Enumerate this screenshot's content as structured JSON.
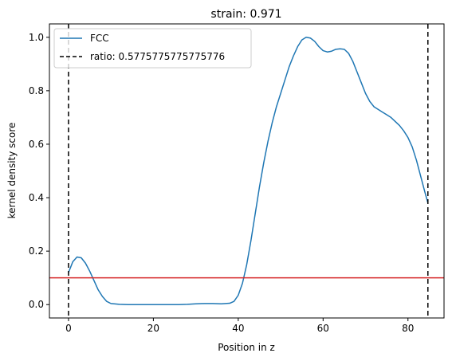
{
  "chart_data": {
    "type": "line",
    "title": "strain: 0.971",
    "xlabel": "Position in z",
    "ylabel": "kernel density score",
    "xlim": [
      -4.5,
      88.5
    ],
    "ylim": [
      -0.05,
      1.05
    ],
    "xticks": [
      0,
      20,
      40,
      60,
      80
    ],
    "yticks": [
      0.0,
      0.2,
      0.4,
      0.6,
      0.8,
      1.0
    ],
    "grid": false,
    "legend_position": "top-left",
    "series": [
      {
        "name": "FCC",
        "color": "#1f77b4",
        "x": [
          0,
          1,
          2,
          3,
          4,
          5,
          6,
          7,
          8,
          9,
          10,
          12,
          14,
          16,
          18,
          20,
          22,
          24,
          26,
          28,
          30,
          32,
          34,
          36,
          38,
          39,
          40,
          41,
          42,
          43,
          44,
          45,
          46,
          47,
          48,
          49,
          50,
          51,
          52,
          53,
          54,
          55,
          56,
          57,
          58,
          59,
          60,
          61,
          62,
          63,
          64,
          65,
          66,
          67,
          68,
          69,
          70,
          71,
          72,
          73,
          74,
          75,
          76,
          77,
          78,
          79,
          80,
          81,
          82,
          83,
          84,
          84.7
        ],
        "y": [
          0.12,
          0.16,
          0.178,
          0.175,
          0.155,
          0.125,
          0.09,
          0.055,
          0.03,
          0.012,
          0.004,
          0.001,
          0.0,
          0.0,
          0.0,
          0.0,
          0.0,
          0.0,
          0.0,
          0.001,
          0.003,
          0.004,
          0.004,
          0.003,
          0.005,
          0.012,
          0.035,
          0.08,
          0.15,
          0.24,
          0.34,
          0.44,
          0.53,
          0.61,
          0.68,
          0.74,
          0.79,
          0.84,
          0.89,
          0.93,
          0.965,
          0.99,
          1.0,
          0.997,
          0.985,
          0.965,
          0.95,
          0.945,
          0.948,
          0.955,
          0.957,
          0.955,
          0.94,
          0.91,
          0.87,
          0.83,
          0.79,
          0.76,
          0.74,
          0.73,
          0.72,
          0.71,
          0.7,
          0.685,
          0.67,
          0.65,
          0.625,
          0.59,
          0.54,
          0.48,
          0.42,
          0.38
        ]
      }
    ],
    "vlines": [
      {
        "x": 0,
        "color": "#000000",
        "style": "dashed"
      },
      {
        "x": 84.7,
        "color": "#000000",
        "style": "dashed"
      }
    ],
    "hlines": [
      {
        "y": 0.1,
        "color": "#d62728",
        "style": "solid"
      }
    ],
    "legend": [
      {
        "label": "FCC",
        "color": "#1f77b4",
        "style": "solid"
      },
      {
        "label": "ratio: 0.5775775775775776",
        "color": "#000000",
        "style": "dashed"
      }
    ]
  }
}
